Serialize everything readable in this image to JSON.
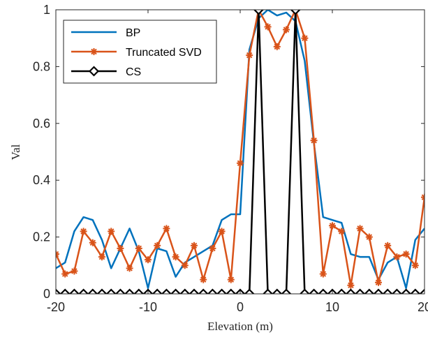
{
  "chart_data": {
    "type": "line",
    "xlabel": "Elevation (m)",
    "ylabel": "Val",
    "xlim": [
      -20,
      20
    ],
    "ylim": [
      0,
      1
    ],
    "xticks": [
      -20,
      -10,
      0,
      10,
      20
    ],
    "yticks": [
      0,
      0.2,
      0.4,
      0.6,
      0.8,
      1
    ],
    "xtick_labels": [
      "-20",
      "-10",
      "0",
      "10",
      "20"
    ],
    "ytick_labels": [
      "0",
      "0.2",
      "0.4",
      "0.6",
      "0.8",
      "1"
    ],
    "grid": false,
    "legend_position": "top-left",
    "x": [
      -20,
      -19,
      -18,
      -17,
      -16,
      -15,
      -14,
      -13,
      -12,
      -11,
      -10,
      -9,
      -8,
      -7,
      -6,
      -5,
      -4,
      -3,
      -2,
      -1,
      0,
      1,
      2,
      3,
      4,
      5,
      6,
      7,
      8,
      9,
      10,
      11,
      12,
      13,
      14,
      15,
      16,
      17,
      18,
      19,
      20
    ],
    "series": [
      {
        "name": "BP",
        "color": "#0072BD",
        "marker": "none",
        "values": [
          0.09,
          0.11,
          0.22,
          0.27,
          0.26,
          0.19,
          0.09,
          0.16,
          0.23,
          0.15,
          0.02,
          0.16,
          0.15,
          0.06,
          0.11,
          0.13,
          0.15,
          0.17,
          0.26,
          0.28,
          0.28,
          0.86,
          0.97,
          1.0,
          0.98,
          0.99,
          0.96,
          0.82,
          0.53,
          0.27,
          0.26,
          0.25,
          0.14,
          0.13,
          0.13,
          0.05,
          0.11,
          0.13,
          0.02,
          0.19,
          0.23
        ]
      },
      {
        "name": "Truncated SVD",
        "color": "#D95319",
        "marker": "asterisk",
        "values": [
          0.14,
          0.07,
          0.08,
          0.22,
          0.18,
          0.13,
          0.22,
          0.16,
          0.09,
          0.16,
          0.12,
          0.17,
          0.23,
          0.13,
          0.1,
          0.17,
          0.05,
          0.16,
          0.22,
          0.05,
          0.46,
          0.84,
          1.0,
          0.94,
          0.87,
          0.93,
          1.0,
          0.9,
          0.54,
          0.07,
          0.24,
          0.22,
          0.03,
          0.23,
          0.2,
          0.04,
          0.17,
          0.13,
          0.14,
          0.1,
          0.34
        ]
      },
      {
        "name": "CS",
        "color": "#000000",
        "marker": "diamond",
        "values": [
          0,
          0,
          0,
          0,
          0,
          0,
          0,
          0,
          0,
          0,
          0,
          0,
          0,
          0,
          0,
          0,
          0,
          0,
          0,
          0,
          0,
          0,
          1,
          0,
          0,
          0,
          1,
          0,
          0,
          0,
          0,
          0,
          0,
          0,
          0,
          0,
          0,
          0,
          0,
          0,
          0
        ]
      }
    ]
  }
}
